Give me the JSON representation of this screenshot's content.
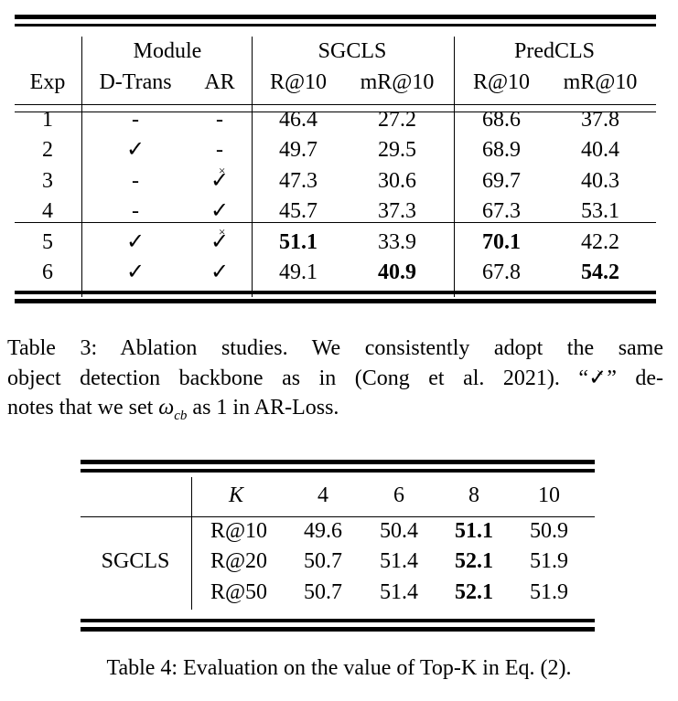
{
  "table3": {
    "group_headers": [
      "Module",
      "SGCLS",
      "PredCLS"
    ],
    "columns": [
      "Exp",
      "D-Trans",
      "AR",
      "R@10",
      "mR@10",
      "R@10",
      "mR@10"
    ],
    "rows": [
      {
        "exp": "1",
        "dtrans": "-",
        "ar": "-",
        "sg_r": "46.4",
        "sg_mr": "27.2",
        "pc_r": "68.6",
        "pc_mr": "37.8"
      },
      {
        "exp": "2",
        "dtrans": "check",
        "ar": "-",
        "sg_r": "49.7",
        "sg_mr": "29.5",
        "pc_r": "68.9",
        "pc_mr": "40.4"
      },
      {
        "exp": "3",
        "dtrans": "-",
        "ar": "check-cross",
        "sg_r": "47.3",
        "sg_mr": "30.6",
        "pc_r": "69.7",
        "pc_mr": "40.3"
      },
      {
        "exp": "4",
        "dtrans": "-",
        "ar": "check",
        "sg_r": "45.7",
        "sg_mr": "37.3",
        "pc_r": "67.3",
        "pc_mr": "53.1"
      },
      {
        "exp": "5",
        "dtrans": "check",
        "ar": "check-cross",
        "sg_r": "51.1",
        "sg_mr": "33.9",
        "pc_r": "70.1",
        "pc_mr": "42.2",
        "bold": [
          "sg_r",
          "pc_r"
        ]
      },
      {
        "exp": "6",
        "dtrans": "check",
        "ar": "check",
        "sg_r": "49.1",
        "sg_mr": "40.9",
        "pc_r": "67.8",
        "pc_mr": "54.2",
        "bold": [
          "sg_mr",
          "pc_mr"
        ]
      }
    ],
    "caption": {
      "line1": "Table 3: Ablation studies. We consistently adopt the same",
      "line2a": "object detection backbone as in (Cong et al. 2021). “",
      "line2b": "” de-",
      "line3a": "notes that we set ",
      "omega": "ω",
      "omega_sub": "cb",
      "line3b": " as 1 in AR-Loss."
    }
  },
  "table4": {
    "k_label": "K",
    "k_values": [
      "4",
      "6",
      "8",
      "10"
    ],
    "row_group": "SGCLS",
    "rows": [
      {
        "metric": "R@10",
        "values": [
          "49.6",
          "50.4",
          "51.1",
          "50.9"
        ]
      },
      {
        "metric": "R@20",
        "values": [
          "50.7",
          "51.4",
          "52.1",
          "51.9"
        ]
      },
      {
        "metric": "R@50",
        "values": [
          "50.7",
          "51.4",
          "52.1",
          "51.9"
        ]
      }
    ],
    "bold_column": "8",
    "caption": "Table 4: Evaluation on the value of Top-K in Eq. (2)."
  }
}
